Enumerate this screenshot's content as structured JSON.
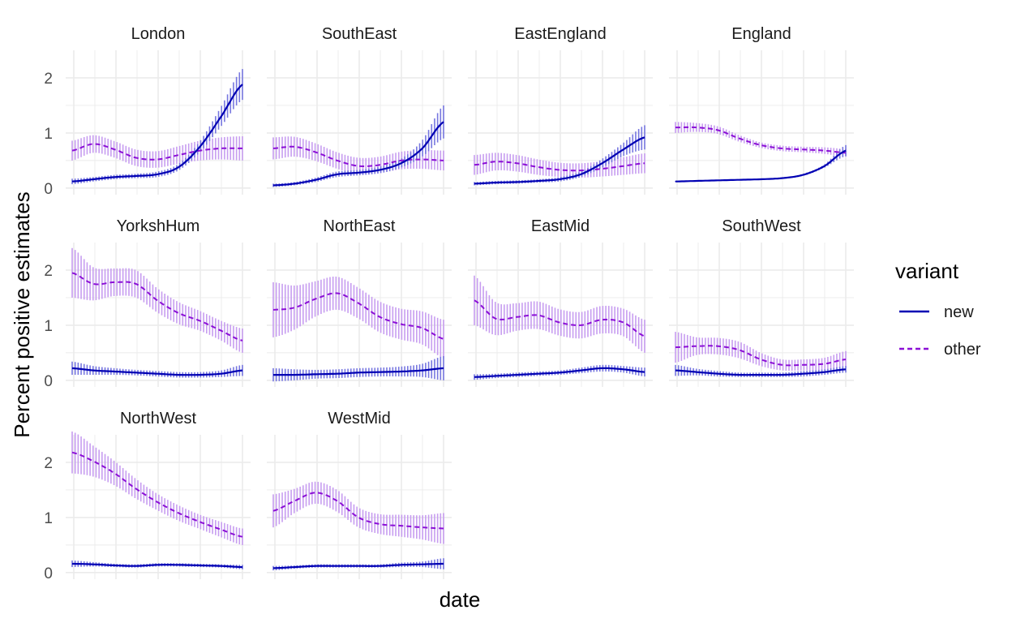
{
  "chart_data": {
    "type": "line",
    "xlabel": "date",
    "ylabel": "Percent positive estimates",
    "ylim": [
      0,
      2.5
    ],
    "yticks": [
      0,
      1,
      2
    ],
    "ytick_labels": [
      "0",
      "1",
      "2"
    ],
    "grid": true,
    "legend": {
      "title": "variant",
      "position": "right",
      "entries": [
        {
          "name": "new",
          "color": "#0000b3",
          "linestyle": "solid"
        },
        {
          "name": "other",
          "color": "#8b0fd6",
          "linestyle": "dashed"
        }
      ]
    },
    "colors": {
      "new": "#0000b3",
      "new_band": "#7777e0",
      "other": "#8b0fd6",
      "other_band": "#c79df0",
      "grid": "#ebebeb",
      "strip_text": "#1a1a1a"
    },
    "x_points": 9,
    "panels": [
      {
        "name": "London",
        "new": [
          0.12,
          0.16,
          0.2,
          0.22,
          0.25,
          0.38,
          0.75,
          1.3,
          1.88
        ],
        "new_err": [
          0.05,
          0.04,
          0.04,
          0.04,
          0.05,
          0.06,
          0.1,
          0.18,
          0.28
        ],
        "other": [
          0.68,
          0.8,
          0.7,
          0.55,
          0.52,
          0.6,
          0.68,
          0.72,
          0.72
        ],
        "other_err": [
          0.18,
          0.16,
          0.15,
          0.15,
          0.15,
          0.16,
          0.18,
          0.2,
          0.22
        ]
      },
      {
        "name": "SouthEast",
        "new": [
          0.05,
          0.08,
          0.15,
          0.25,
          0.28,
          0.33,
          0.45,
          0.72,
          1.2
        ],
        "new_err": [
          0.03,
          0.03,
          0.04,
          0.05,
          0.05,
          0.06,
          0.08,
          0.15,
          0.3
        ],
        "other": [
          0.72,
          0.75,
          0.65,
          0.5,
          0.4,
          0.42,
          0.5,
          0.52,
          0.5
        ],
        "other_err": [
          0.2,
          0.18,
          0.16,
          0.15,
          0.15,
          0.15,
          0.16,
          0.17,
          0.18
        ]
      },
      {
        "name": "EastEngland",
        "new": [
          0.08,
          0.1,
          0.11,
          0.13,
          0.16,
          0.25,
          0.45,
          0.7,
          0.92
        ],
        "new_err": [
          0.03,
          0.03,
          0.03,
          0.03,
          0.04,
          0.05,
          0.08,
          0.12,
          0.22
        ],
        "other": [
          0.42,
          0.48,
          0.45,
          0.38,
          0.33,
          0.32,
          0.35,
          0.4,
          0.45
        ],
        "other_err": [
          0.18,
          0.16,
          0.15,
          0.14,
          0.13,
          0.13,
          0.14,
          0.16,
          0.18
        ]
      },
      {
        "name": "England",
        "new": [
          0.12,
          0.13,
          0.14,
          0.15,
          0.16,
          0.18,
          0.24,
          0.4,
          0.68
        ],
        "new_err": [
          0.01,
          0.01,
          0.01,
          0.01,
          0.01,
          0.01,
          0.02,
          0.03,
          0.1
        ],
        "other": [
          1.1,
          1.1,
          1.05,
          0.9,
          0.78,
          0.72,
          0.7,
          0.68,
          0.64
        ],
        "other_err": [
          0.1,
          0.08,
          0.07,
          0.06,
          0.05,
          0.05,
          0.05,
          0.06,
          0.07
        ]
      },
      {
        "name": "YorkshHum",
        "new": [
          0.22,
          0.18,
          0.16,
          0.14,
          0.12,
          0.1,
          0.1,
          0.12,
          0.18
        ],
        "new_err": [
          0.12,
          0.08,
          0.06,
          0.05,
          0.05,
          0.05,
          0.05,
          0.06,
          0.1
        ],
        "other": [
          1.95,
          1.75,
          1.78,
          1.75,
          1.45,
          1.22,
          1.08,
          0.9,
          0.72
        ],
        "other_err": [
          0.45,
          0.3,
          0.25,
          0.25,
          0.22,
          0.2,
          0.18,
          0.18,
          0.22
        ]
      },
      {
        "name": "NorthEast",
        "new": [
          0.1,
          0.1,
          0.11,
          0.12,
          0.14,
          0.15,
          0.16,
          0.18,
          0.22
        ],
        "new_err": [
          0.12,
          0.1,
          0.08,
          0.08,
          0.08,
          0.08,
          0.09,
          0.12,
          0.22
        ],
        "other": [
          1.28,
          1.32,
          1.48,
          1.58,
          1.4,
          1.15,
          1.02,
          0.95,
          0.75
        ],
        "other_err": [
          0.5,
          0.4,
          0.32,
          0.3,
          0.28,
          0.28,
          0.28,
          0.3,
          0.35
        ]
      },
      {
        "name": "EastMid",
        "new": [
          0.06,
          0.08,
          0.1,
          0.12,
          0.14,
          0.18,
          0.22,
          0.2,
          0.15
        ],
        "new_err": [
          0.05,
          0.04,
          0.04,
          0.04,
          0.04,
          0.05,
          0.06,
          0.06,
          0.08
        ],
        "other": [
          1.45,
          1.12,
          1.15,
          1.18,
          1.05,
          1.0,
          1.1,
          1.05,
          0.8
        ],
        "other_err": [
          0.45,
          0.3,
          0.25,
          0.25,
          0.24,
          0.24,
          0.25,
          0.25,
          0.3
        ]
      },
      {
        "name": "SouthWest",
        "new": [
          0.18,
          0.15,
          0.12,
          0.1,
          0.1,
          0.1,
          0.12,
          0.15,
          0.2
        ],
        "new_err": [
          0.1,
          0.06,
          0.05,
          0.04,
          0.04,
          0.04,
          0.05,
          0.05,
          0.06
        ],
        "other": [
          0.6,
          0.62,
          0.62,
          0.55,
          0.38,
          0.28,
          0.28,
          0.3,
          0.38
        ],
        "other_err": [
          0.28,
          0.16,
          0.15,
          0.15,
          0.12,
          0.1,
          0.1,
          0.11,
          0.15
        ]
      },
      {
        "name": "NorthWest",
        "new": [
          0.16,
          0.15,
          0.13,
          0.12,
          0.14,
          0.14,
          0.13,
          0.12,
          0.1
        ],
        "new_err": [
          0.06,
          0.04,
          0.03,
          0.03,
          0.03,
          0.03,
          0.03,
          0.03,
          0.04
        ],
        "other": [
          2.18,
          2.02,
          1.8,
          1.52,
          1.28,
          1.08,
          0.92,
          0.78,
          0.65
        ],
        "other_err": [
          0.38,
          0.28,
          0.22,
          0.18,
          0.15,
          0.14,
          0.13,
          0.14,
          0.15
        ]
      },
      {
        "name": "WestMid",
        "new": [
          0.08,
          0.1,
          0.12,
          0.12,
          0.12,
          0.12,
          0.14,
          0.15,
          0.16
        ],
        "new_err": [
          0.04,
          0.03,
          0.03,
          0.03,
          0.03,
          0.03,
          0.04,
          0.05,
          0.1
        ],
        "other": [
          1.12,
          1.3,
          1.45,
          1.3,
          1.0,
          0.88,
          0.85,
          0.82,
          0.8
        ],
        "other_err": [
          0.3,
          0.22,
          0.2,
          0.2,
          0.18,
          0.18,
          0.2,
          0.22,
          0.28
        ]
      }
    ]
  }
}
